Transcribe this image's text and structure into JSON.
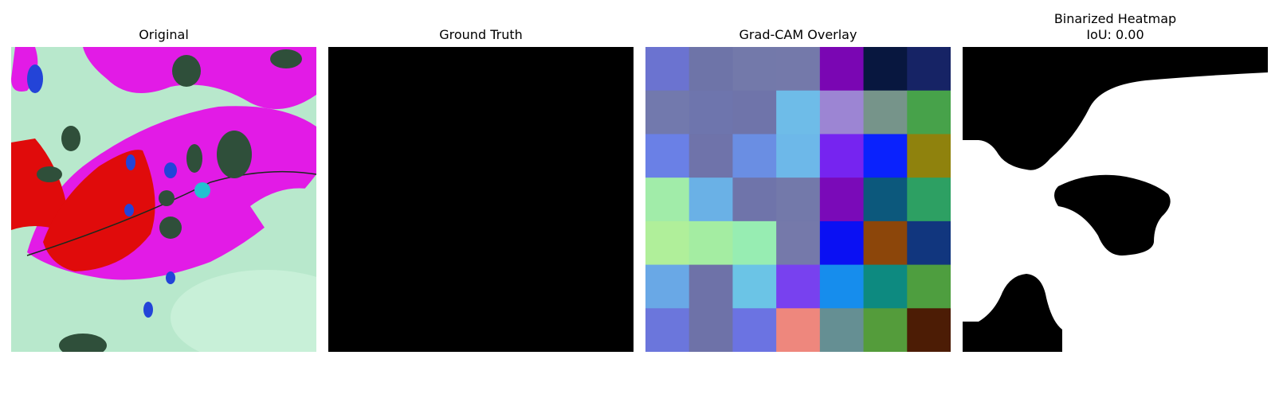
{
  "figure": {
    "panels": [
      {
        "title": "Original"
      },
      {
        "title": "Ground Truth"
      },
      {
        "title": "Grad-CAM Overlay"
      },
      {
        "title": "Binarized Heatmap",
        "subtitle": "IoU: 0.00"
      }
    ]
  },
  "gradcam_grid": {
    "rows": 7,
    "cols": 7,
    "colors": [
      [
        "#6b73d0",
        "#6e74a8",
        "#7379aa",
        "#7479aa",
        "#7a06b3",
        "#08173f",
        "#162365"
      ],
      [
        "#7279ad",
        "#6e75ad",
        "#6f74aa",
        "#6ebce8",
        "#9c85d3",
        "#76948a",
        "#47a24a"
      ],
      [
        "#6a80e6",
        "#6f73aa",
        "#6a8ee3",
        "#6db8e9",
        "#7624f0",
        "#0a22fd",
        "#8f820d"
      ],
      [
        "#a1eca9",
        "#6ab1e6",
        "#6f74aa",
        "#7379aa",
        "#7a0ab8",
        "#0c587c",
        "#2da063"
      ],
      [
        "#b0ef9a",
        "#a4eda2",
        "#97edb2",
        "#7579aa",
        "#0a10f3",
        "#8c460a",
        "#11367e"
      ],
      [
        "#69a8e6",
        "#6e72a8",
        "#6bc4e6",
        "#7841ef",
        "#168ded",
        "#0d8a80",
        "#4e9e3f"
      ],
      [
        "#6b76dc",
        "#6e72a8",
        "#6b73e2",
        "#ee877d",
        "#658f93",
        "#549c3b",
        "#4c1c05"
      ]
    ]
  },
  "colors": {
    "original_bg": "#b8e8cc",
    "leaf_magenta": "#e21be6",
    "leaf_red": "#e00b0b",
    "spot_dark": "#2f4f3a",
    "spot_blue": "#2344d8",
    "ground_truth": "#000000",
    "mask_black": "#000000",
    "mask_white": "#ffffff"
  }
}
